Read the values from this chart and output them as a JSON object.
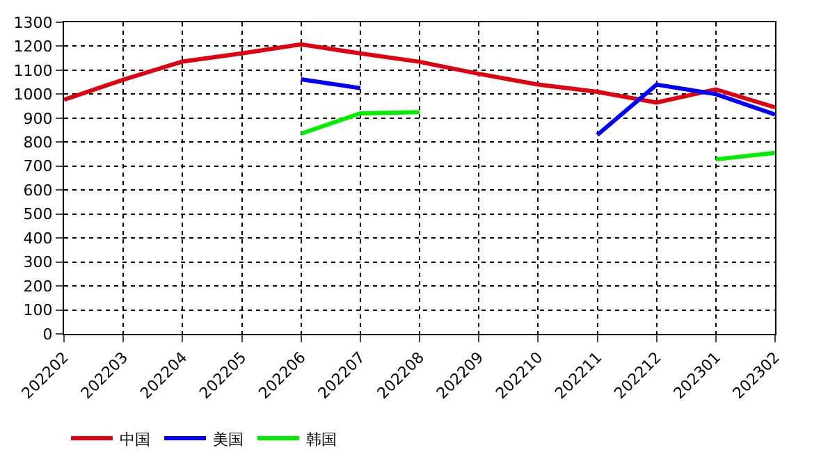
{
  "chart_data": {
    "type": "line",
    "categories": [
      "202202",
      "202203",
      "202204",
      "202205",
      "202206",
      "202207",
      "202208",
      "202209",
      "202210",
      "202211",
      "202212",
      "202301",
      "202302"
    ],
    "series": [
      {
        "name": "中国",
        "color": "#e00010",
        "values": [
          977,
          1060,
          1136,
          1170,
          1208,
          1170,
          1135,
          1085,
          1040,
          1010,
          965,
          1020,
          945
        ]
      },
      {
        "name": "美国",
        "color": "#0000ff",
        "values": [
          null,
          null,
          null,
          null,
          1062,
          1025,
          null,
          null,
          null,
          830,
          1040,
          1000,
          915
        ]
      },
      {
        "name": "韩国",
        "color": "#00ee00",
        "values": [
          null,
          null,
          null,
          null,
          835,
          920,
          925,
          null,
          null,
          null,
          null,
          728,
          755
        ]
      }
    ],
    "ylim": [
      0,
      1300
    ],
    "yticks": [
      0,
      100,
      200,
      300,
      400,
      500,
      600,
      700,
      800,
      900,
      1000,
      1100,
      1200,
      1300
    ],
    "grid": true,
    "legend": "bottom",
    "marker": "none",
    "line_style": "solid"
  }
}
